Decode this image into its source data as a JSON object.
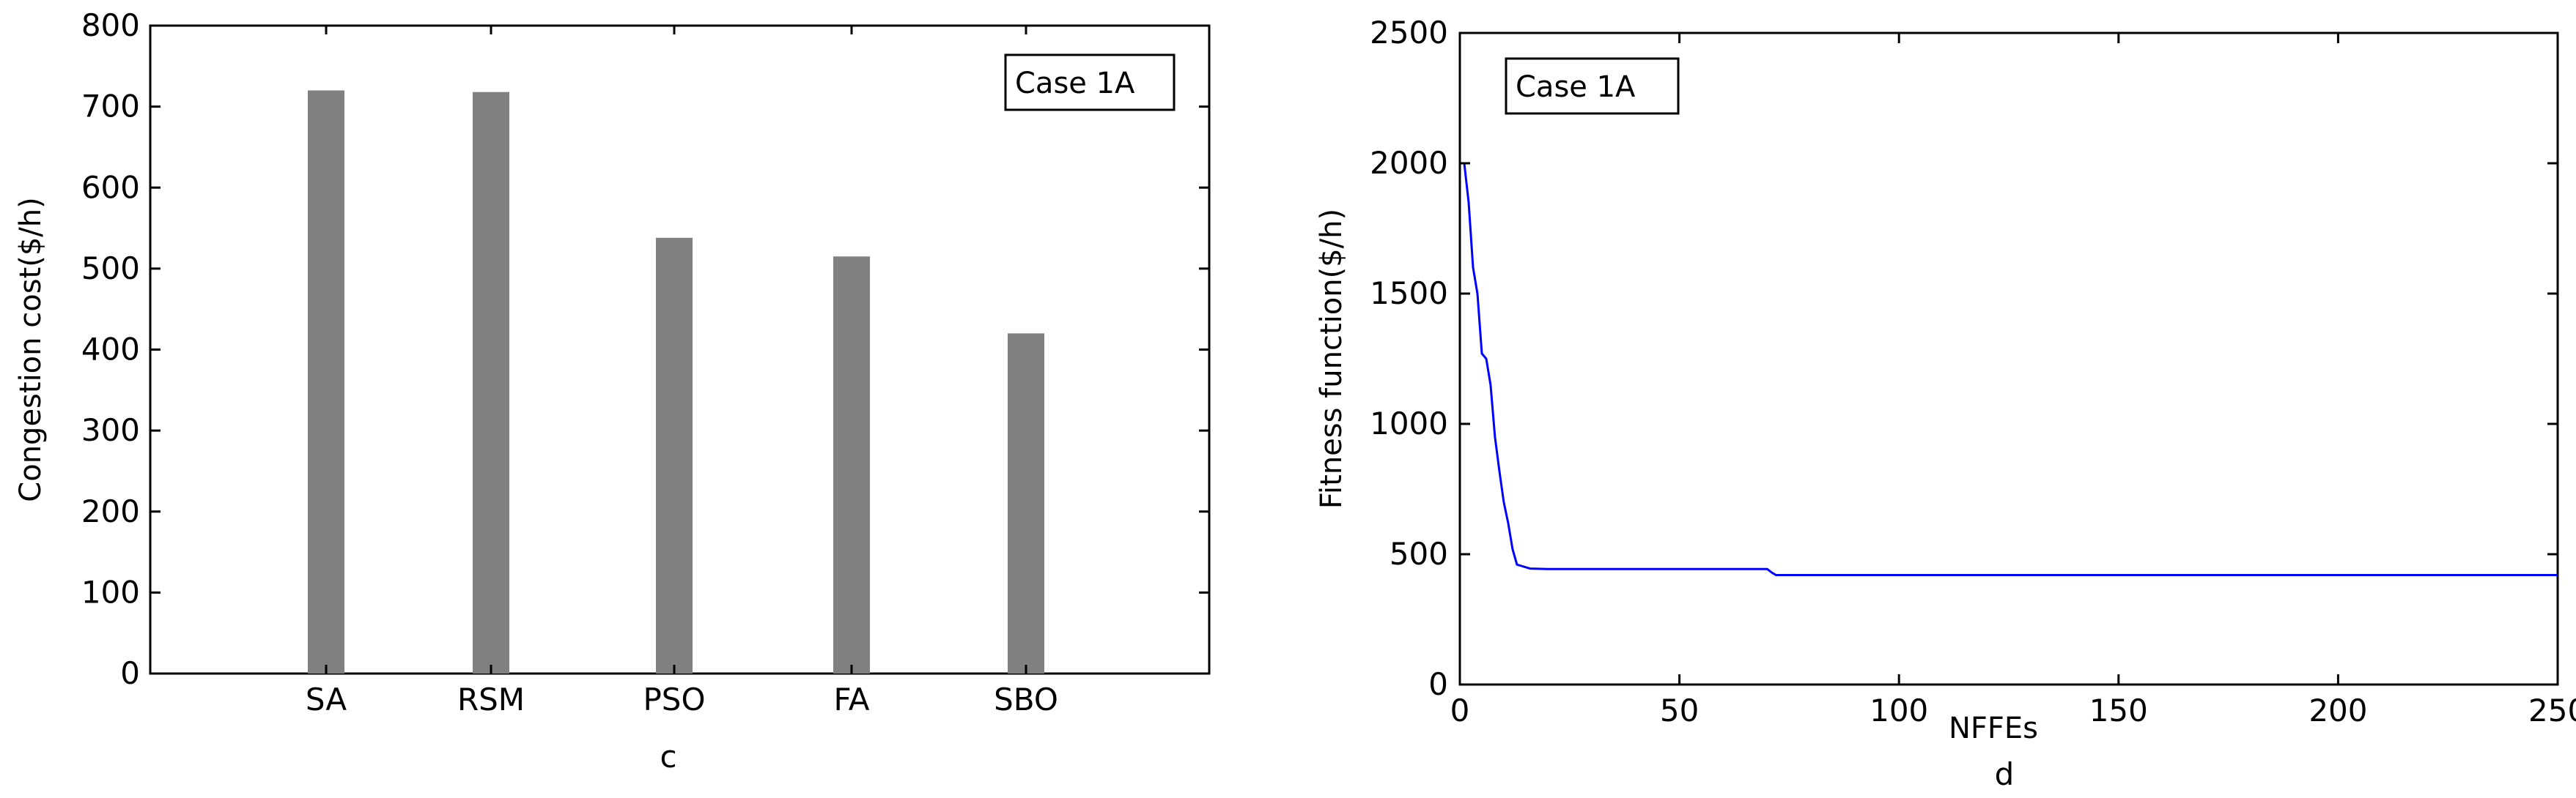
{
  "chart_data": [
    {
      "type": "bar",
      "panel_label": "c",
      "title": "",
      "xlabel": "",
      "ylabel": "Congestion cost($/h)",
      "categories": [
        "SA",
        "RSM",
        "PSO",
        "FA",
        "SBO"
      ],
      "values": [
        720,
        718,
        538,
        515,
        420
      ],
      "ylim": [
        0,
        800
      ],
      "yticks": [
        0,
        100,
        200,
        300,
        400,
        500,
        600,
        700,
        800
      ],
      "legend": "Case 1A",
      "legend_position": "top-right",
      "grid": false,
      "bar_color": "#808080"
    },
    {
      "type": "line",
      "panel_label": "d",
      "title": "",
      "xlabel": "NFFEs",
      "ylabel": "Fitness function($/h)",
      "xlim": [
        0,
        250
      ],
      "ylim": [
        0,
        2500
      ],
      "xticks": [
        0,
        50,
        100,
        150,
        200,
        250
      ],
      "yticks": [
        0,
        500,
        1000,
        1500,
        2000,
        2500
      ],
      "xtick_labels": [
        "0",
        "50",
        "100",
        "150",
        "200",
        "250"
      ],
      "legend": "Case 1A",
      "legend_position": "top-left",
      "grid": false,
      "series": [
        {
          "color": "#0000ff",
          "x": [
            0,
            1,
            2,
            3,
            4,
            5,
            6,
            7,
            8,
            9,
            10,
            11,
            12,
            13,
            14,
            16,
            20,
            50,
            70,
            71,
            72,
            100,
            150,
            200,
            250
          ],
          "y": [
            2000,
            2000,
            1850,
            1600,
            1500,
            1270,
            1250,
            1150,
            950,
            820,
            700,
            620,
            520,
            460,
            455,
            445,
            443,
            443,
            443,
            430,
            420,
            420,
            420,
            420,
            420
          ]
        }
      ]
    }
  ]
}
